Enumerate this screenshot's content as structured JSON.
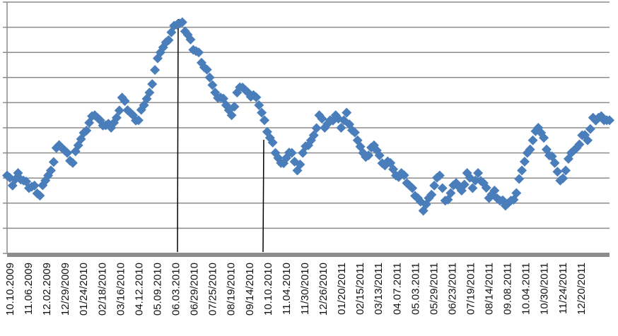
{
  "chart_data": {
    "type": "scatter",
    "marker": "diamond",
    "title": "",
    "xlabel": "",
    "ylabel": "",
    "grid": true,
    "ylim": [
      0,
      10
    ],
    "colors": {
      "series": "#4a7ebb",
      "grid": "#8c8c8c",
      "axis": "#8c8c8c",
      "annotation": "#000000"
    },
    "categories": [
      "10.10.2009",
      "11.06.2009",
      "12.02.2009",
      "12/29/2009",
      "01/24/2010",
      "02/18/2010",
      "03/16/2010",
      "04.12.2010",
      "05.09.2010",
      "06.03.2010",
      "06/29/2010",
      "07/25/2010",
      "08/19/2010",
      "09/14/2010",
      "10.10.2010",
      "11.04.2010",
      "11/30/2010",
      "12/26/2010",
      "01/20/2011",
      "02/15/2011",
      "03/13/2011",
      "04.07.2011",
      "05.03.2011",
      "05/29/2011",
      "06/23/2011",
      "07/19/2011",
      "08/14/2011",
      "09.08.2011",
      "10.04.2011",
      "10/30/2011",
      "11/24/2011",
      "12/20/2011"
    ],
    "series": [
      {
        "values": [
          3.1,
          2.7,
          3.2,
          2.9,
          2.6,
          2.7,
          2.3,
          2.9,
          3.3,
          4.2,
          4.2,
          4.0,
          3.6,
          4.3,
          4.8,
          5.2,
          5.5,
          5.3,
          5.1,
          5.0,
          5.4,
          6.2,
          5.7,
          5.5,
          5.3,
          5.9,
          6.4,
          7.3,
          8.0,
          8.4,
          8.8,
          9.1,
          9.2,
          8.7,
          8.1,
          8.0,
          7.4,
          7.0,
          6.4,
          6.2,
          5.9,
          5.5,
          6.4,
          6.6,
          6.4,
          6.3,
          5.9,
          5.3,
          4.6,
          4.0,
          3.6,
          3.8,
          4.0,
          3.3,
          4.0,
          4.3,
          4.7,
          5.5,
          5.0,
          5.3,
          5.5,
          5.0,
          5.6,
          4.9,
          4.5,
          4.0,
          3.9,
          4.3,
          3.9,
          3.5,
          3.6,
          3.1,
          3.2,
          2.8,
          2.6,
          2.2,
          1.7,
          2.2,
          2.7,
          3.1,
          2.1,
          2.4,
          2.8,
          2.5,
          3.2,
          2.6,
          3.2,
          2.8,
          2.2,
          2.5,
          2.1,
          1.9,
          2.1,
          2.4,
          3.3,
          4.0,
          4.5,
          5.0,
          4.6,
          3.9,
          3.6,
          2.9,
          3.3,
          4.0,
          4.2,
          4.7,
          4.5,
          5.4,
          5.4,
          5.3,
          5.3
        ]
      }
    ]
  }
}
